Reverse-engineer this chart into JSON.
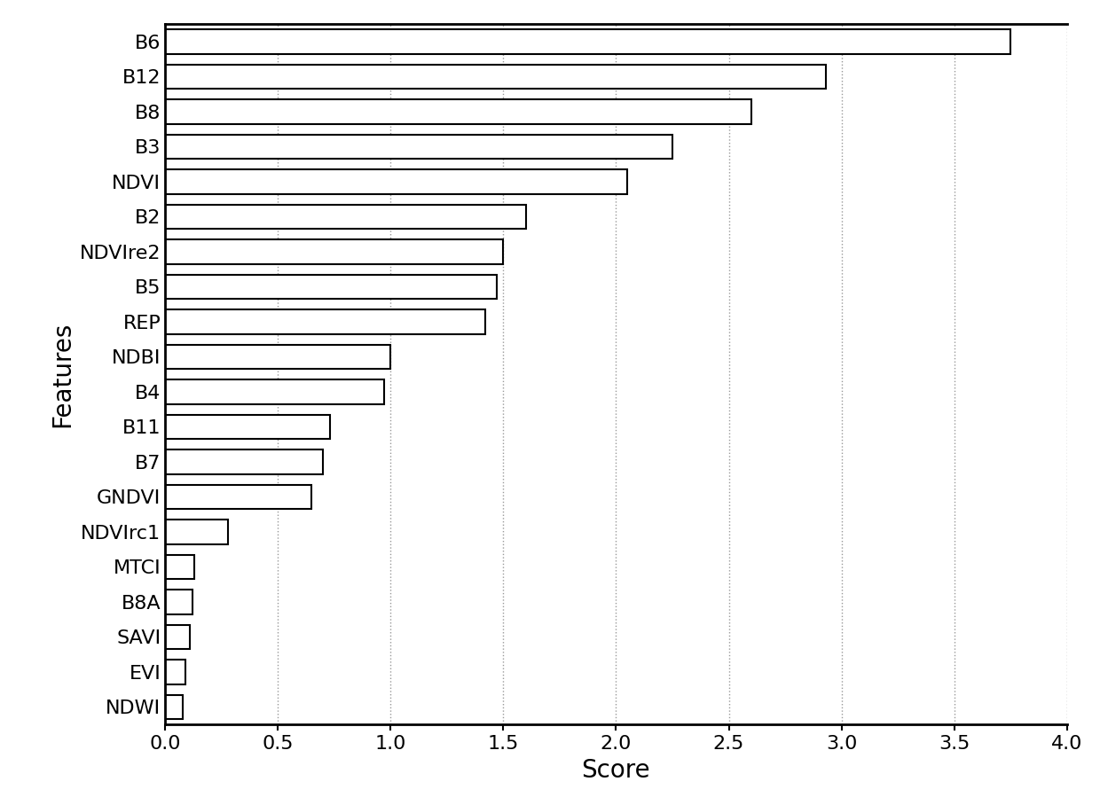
{
  "features": [
    "B6",
    "B12",
    "B8",
    "B3",
    "NDVI",
    "B2",
    "NDVIre2",
    "B5",
    "REP",
    "NDBI",
    "B4",
    "B11",
    "B7",
    "GNDVI",
    "NDVIrc1",
    "MTCI",
    "B8A",
    "SAVI",
    "EVI",
    "NDWI"
  ],
  "scores": [
    3.75,
    2.93,
    2.6,
    2.25,
    2.05,
    1.6,
    1.5,
    1.47,
    1.42,
    1.0,
    0.97,
    0.73,
    0.7,
    0.65,
    0.28,
    0.13,
    0.12,
    0.11,
    0.09,
    0.08
  ],
  "bar_color": "#ffffff",
  "bar_edgecolor": "#000000",
  "bar_linewidth": 1.5,
  "background_color": "#ffffff",
  "xlabel": "Score",
  "ylabel": "Features",
  "xlim": [
    0,
    4.0
  ],
  "xticks": [
    0.0,
    0.5,
    1.0,
    1.5,
    2.0,
    2.5,
    3.0,
    3.5,
    4.0
  ],
  "xlabel_fontsize": 20,
  "ylabel_fontsize": 20,
  "tick_fontsize": 16,
  "ytick_fontsize": 16,
  "grid_color": "#999999",
  "grid_linestyle": "dotted",
  "grid_linewidth": 1.0,
  "figsize": [
    12.4,
    9.08
  ],
  "dpi": 100,
  "bar_height": 0.7,
  "spine_linewidth": 2.0
}
